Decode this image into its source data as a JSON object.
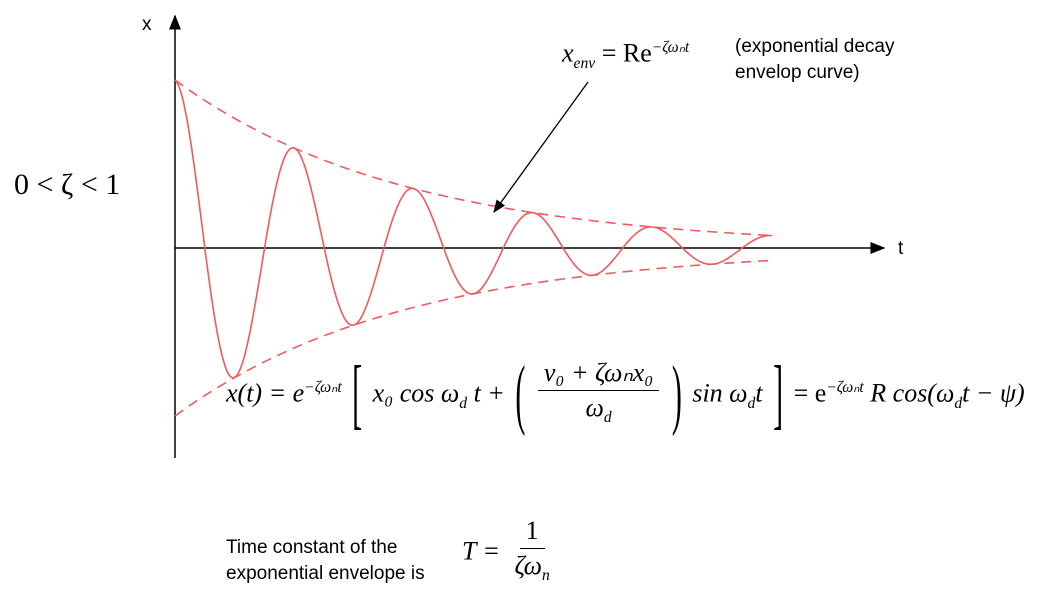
{
  "axes": {
    "x_label": "x",
    "t_label": "t"
  },
  "condition": "0 < ζ < 1",
  "envelope": {
    "formula_lhs": "x",
    "formula_lhs_sub": "env",
    "formula_rhs": "= Re",
    "formula_exp": "−ζωₙt",
    "note_line1": "(exponential decay",
    "note_line2": "envelop curve)"
  },
  "main_equation": {
    "left": "x(t) = e",
    "exp": "−ζωₙt",
    "term1": "x₀ cos ω",
    "term1_sub": "d",
    "term1_tail": "t +",
    "frac_num": "v₀ + ζωₙx₀",
    "frac_den": "ω",
    "frac_den_sub": "d",
    "term2": "sin ω",
    "term2_sub": "d",
    "term2_tail": "t",
    "right": "= e",
    "right_exp": "−ζωₙt",
    "right_tail": "R cos(ω",
    "right_sub": "d",
    "right_end": "t − ψ)"
  },
  "time_constant": {
    "label_line1": "Time constant of the",
    "label_line2": "exponential envelope is",
    "lhs": "T =",
    "num": "1",
    "den": "ζω",
    "den_sub": "n"
  },
  "colors": {
    "curve": "#f05a5a",
    "axis": "#000000"
  }
}
